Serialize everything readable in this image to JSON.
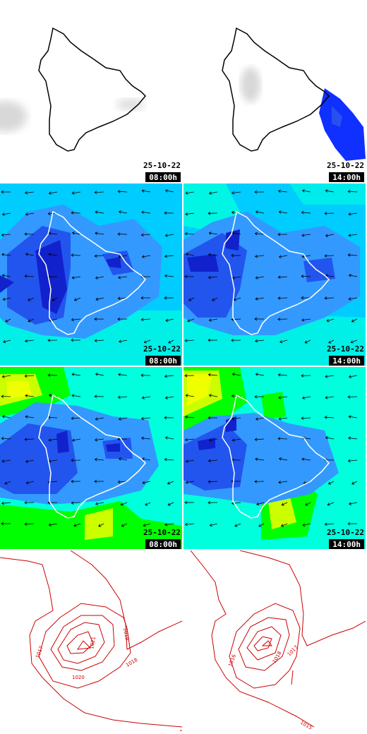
{
  "rows": [
    {
      "row": "precipitation",
      "panels": [
        {
          "date": "25-10-22",
          "time": "08:00h"
        },
        {
          "date": "25-10-22",
          "time": "14:00h"
        }
      ]
    },
    {
      "row": "wind-low",
      "panels": [
        {
          "date": "25-10-22",
          "time": "08:00h"
        },
        {
          "date": "25-10-22",
          "time": "14:00h"
        }
      ]
    },
    {
      "row": "wind-high",
      "panels": [
        {
          "date": "25-10-22",
          "time": "08:00h"
        },
        {
          "date": "25-10-22",
          "time": "14:00h"
        }
      ]
    },
    {
      "row": "pressure",
      "panels": [
        {
          "isobars": [
            "1017",
            "1019",
            "1020",
            "1021",
            "1018"
          ]
        },
        {
          "isobars": [
            "1016",
            "1018",
            "1017",
            "1015"
          ]
        }
      ]
    }
  ],
  "colors": {
    "coast": "#000000",
    "coast_on_fill": "#ffffff",
    "isobar": "#cc0000",
    "rain": "#1030ff",
    "wind_scale": [
      "#f0ff00",
      "#00ff00",
      "#00ffdd",
      "#00ccff",
      "#3399ff",
      "#2255ee",
      "#1122cc"
    ]
  }
}
